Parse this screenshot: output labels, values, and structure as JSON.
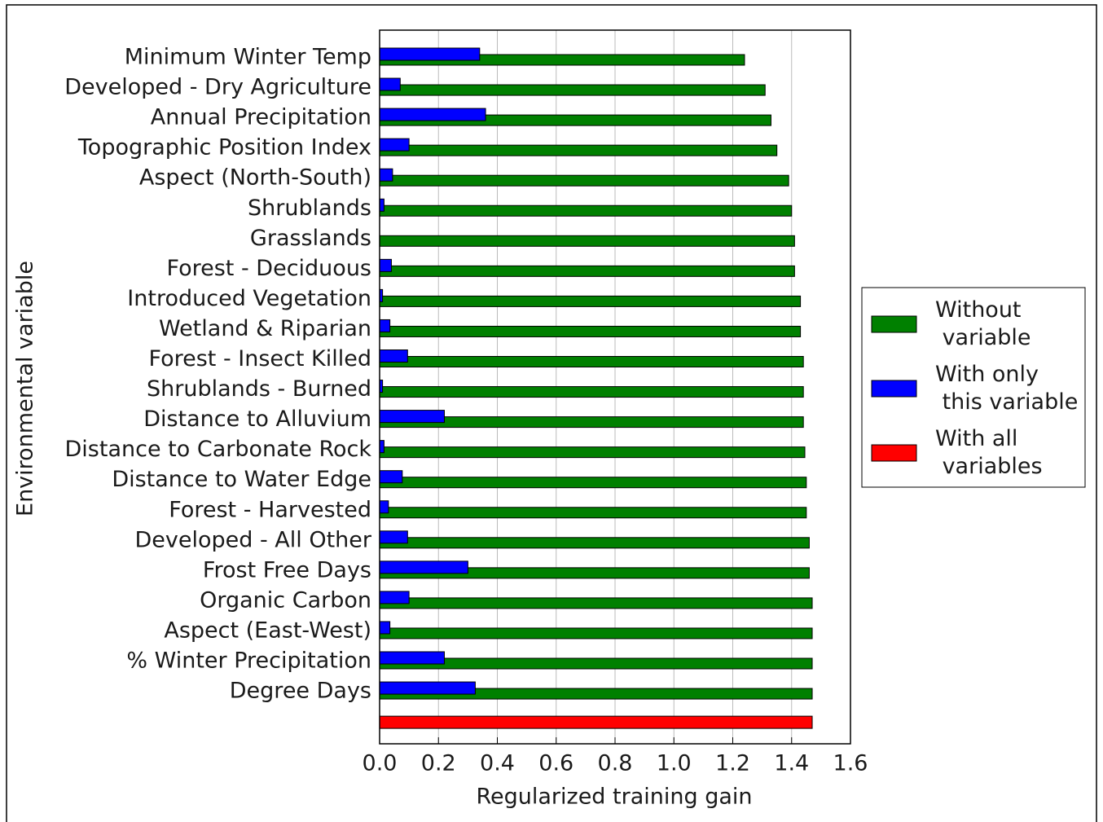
{
  "chart_data": {
    "type": "barh",
    "x_label": "Regularized training gain",
    "y_label": "Environmental variable",
    "categories": [
      "Minimum Winter Temp",
      "Developed - Dry Agriculture",
      "Annual Precipitation",
      "Topographic Position Index",
      "Aspect (North-South)",
      "Shrublands",
      "Grasslands",
      "Forest - Deciduous",
      "Introduced Vegetation",
      "Wetland & Riparian",
      "Forest - Insect Killed",
      "Shrublands - Burned",
      "Distance to Alluvium",
      "Distance to Carbonate Rock",
      "Distance to Water Edge",
      "Forest - Harvested",
      "Developed - All Other",
      "Frost Free Days",
      "Organic Carbon",
      "Aspect (East-West)",
      "% Winter Precipitation",
      "Degree Days",
      null
    ],
    "series": [
      {
        "name": "Without variable",
        "color": "#008000",
        "values": [
          1.24,
          1.31,
          1.33,
          1.35,
          1.39,
          1.4,
          1.41,
          1.41,
          1.43,
          1.43,
          1.44,
          1.44,
          1.44,
          1.445,
          1.45,
          1.45,
          1.46,
          1.46,
          1.47,
          1.47,
          1.47,
          1.47,
          null
        ]
      },
      {
        "name": "With only this variable",
        "color": "#0000ff",
        "values": [
          0.34,
          0.07,
          0.36,
          0.1,
          0.044,
          0.015,
          0,
          0.04,
          0.01,
          0.035,
          0.095,
          0.01,
          0.22,
          0.015,
          0.077,
          0.03,
          0.095,
          0.3,
          0.1,
          0.035,
          0.22,
          0.325,
          null
        ]
      },
      {
        "name": "With all variables",
        "color": "#ff0000",
        "values": [
          null,
          null,
          null,
          null,
          null,
          null,
          null,
          null,
          null,
          null,
          null,
          null,
          null,
          null,
          null,
          null,
          null,
          null,
          null,
          null,
          null,
          null,
          1.47
        ]
      }
    ],
    "xlim": [
      0,
      1.6
    ],
    "xticks": [
      {
        "value": 0,
        "label": "0.0"
      },
      0.2,
      0.4,
      0.6,
      0.8,
      {
        "value": 1,
        "label": "1.0"
      },
      1.2,
      1.4,
      1.6
    ],
    "grid": true,
    "legend": "right"
  }
}
